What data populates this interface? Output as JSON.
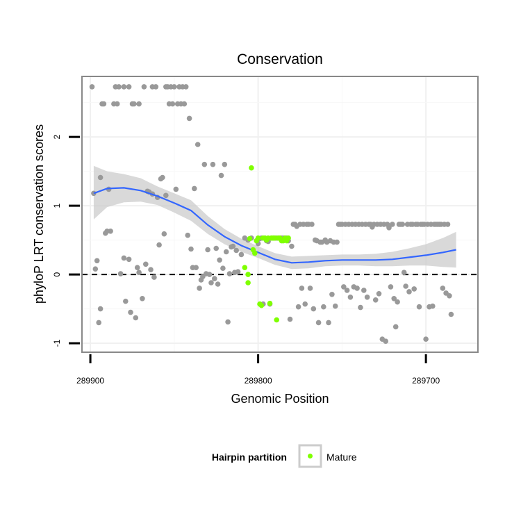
{
  "chart_data": {
    "type": "scatter",
    "title": "Conservation",
    "xlabel": "Genomic Position",
    "ylabel": "phyloP LRT conservation scores",
    "x_reversed": true,
    "xlim": [
      289905,
      289669
    ],
    "ylim": [
      -1.13,
      2.88
    ],
    "x_ticks": [
      289900,
      289800,
      289700
    ],
    "x_tick_labels": [
      "289900",
      "289800",
      "289700"
    ],
    "y_ticks": [
      -1,
      0,
      1,
      2
    ],
    "y_tick_labels": [
      "-1",
      "0",
      "1",
      "2"
    ],
    "grid": true,
    "reference_line": {
      "y": 0,
      "style": "dashed"
    },
    "legend": {
      "title": "Hairpin partition",
      "position": "bottom",
      "entries": [
        {
          "label": "Mature",
          "color": "#7fff00"
        }
      ]
    },
    "colors": {
      "other": "#999999",
      "mature": "#7fff00",
      "smooth": "#3366ff",
      "band": "#cccccc"
    },
    "series": [
      {
        "name": "Other",
        "points": [
          [
            289899,
            2.73
          ],
          [
            289898,
            1.18
          ],
          [
            289897,
            0.08
          ],
          [
            289896,
            0.2
          ],
          [
            289895,
            -0.7
          ],
          [
            289894,
            -0.5
          ],
          [
            289894,
            1.41
          ],
          [
            289893,
            2.48
          ],
          [
            289892,
            2.48
          ],
          [
            289891,
            0.6
          ],
          [
            289890,
            0.63
          ],
          [
            289889,
            1.24
          ],
          [
            289888,
            0.63
          ],
          [
            289886,
            2.48
          ],
          [
            289885,
            2.73
          ],
          [
            289884,
            2.48
          ],
          [
            289883,
            2.73
          ],
          [
            289882,
            0.01
          ],
          [
            289880,
            2.73
          ],
          [
            289880,
            0.24
          ],
          [
            289879,
            -0.39
          ],
          [
            289877,
            2.73
          ],
          [
            289877,
            0.22
          ],
          [
            289876,
            -0.55
          ],
          [
            289875,
            2.48
          ],
          [
            289874,
            2.48
          ],
          [
            289873,
            -0.63
          ],
          [
            289872,
            0.1
          ],
          [
            289871,
            0.03
          ],
          [
            289871,
            2.48
          ],
          [
            289869,
            -0.35
          ],
          [
            289868,
            2.73
          ],
          [
            289867,
            0.15
          ],
          [
            289866,
            1.21
          ],
          [
            289865,
            1.2
          ],
          [
            289864,
            0.07
          ],
          [
            289863,
            1.17
          ],
          [
            289863,
            2.73
          ],
          [
            289862,
            -0.04
          ],
          [
            289861,
            2.73
          ],
          [
            289860,
            1.12
          ],
          [
            289859,
            0.43
          ],
          [
            289858,
            1.39
          ],
          [
            289857,
            1.41
          ],
          [
            289856,
            0.59
          ],
          [
            289855,
            2.73
          ],
          [
            289855,
            1.15
          ],
          [
            289854,
            2.73
          ],
          [
            289853,
            2.48
          ],
          [
            289852,
            2.73
          ],
          [
            289851,
            2.48
          ],
          [
            289850,
            2.73
          ],
          [
            289849,
            1.24
          ],
          [
            289848,
            2.48
          ],
          [
            289847,
            2.73
          ],
          [
            289846,
            2.48
          ],
          [
            289845,
            2.73
          ],
          [
            289844,
            2.48
          ],
          [
            289843,
            2.73
          ],
          [
            289842,
            0.57
          ],
          [
            289841,
            2.27
          ],
          [
            289840,
            0.37
          ],
          [
            289839,
            0.1
          ],
          [
            289838,
            1.25
          ],
          [
            289837,
            0.1
          ],
          [
            289836,
            1.89
          ],
          [
            289835,
            -0.2
          ],
          [
            289834,
            -0.08
          ],
          [
            289833,
            -0.03
          ],
          [
            289832,
            1.6
          ],
          [
            289831,
            0.01
          ],
          [
            289830,
            0.36
          ],
          [
            289829,
            0.0
          ],
          [
            289828,
            -0.12
          ],
          [
            289827,
            1.6
          ],
          [
            289826,
            -0.06
          ],
          [
            289825,
            0.38
          ],
          [
            289824,
            -0.14
          ],
          [
            289823,
            0.21
          ],
          [
            289822,
            1.44
          ],
          [
            289821,
            0.09
          ],
          [
            289820,
            1.6
          ],
          [
            289819,
            0.33
          ],
          [
            289818,
            -0.69
          ],
          [
            289817,
            0.01
          ],
          [
            289816,
            0.4
          ],
          [
            289815,
            0.41
          ],
          [
            289814,
            0.03
          ],
          [
            289813,
            0.35
          ],
          [
            289812,
            0.04
          ],
          [
            289810,
            0.29
          ],
          [
            289808,
            0.53
          ],
          [
            289806,
            0.5
          ],
          [
            289804,
            0.53
          ],
          [
            289800,
            0.45
          ],
          [
            289799,
            0.52
          ],
          [
            289798,
            0.53
          ],
          [
            289797,
            -0.43
          ],
          [
            289796,
            0.53
          ],
          [
            289795,
            0.49
          ],
          [
            289794,
            0.48
          ],
          [
            289793,
            -0.43
          ],
          [
            289792,
            0.53
          ],
          [
            289791,
            0.53
          ],
          [
            289790,
            0.53
          ],
          [
            289789,
            0.53
          ],
          [
            289788,
            0.53
          ],
          [
            289787,
            0.53
          ],
          [
            289786,
            0.53
          ],
          [
            289785,
            0.53
          ],
          [
            289784,
            0.53
          ],
          [
            289783,
            0.53
          ],
          [
            289782,
            0.49
          ],
          [
            289781,
            -0.65
          ],
          [
            289780,
            0.41
          ],
          [
            289779,
            0.73
          ],
          [
            289778,
            0.73
          ],
          [
            289777,
            0.7
          ],
          [
            289776,
            -0.47
          ],
          [
            289775,
            0.73
          ],
          [
            289774,
            -0.2
          ],
          [
            289773,
            0.73
          ],
          [
            289772,
            -0.43
          ],
          [
            289771,
            0.73
          ],
          [
            289770,
            0.73
          ],
          [
            289769,
            -0.2
          ],
          [
            289768,
            0.73
          ],
          [
            289767,
            -0.5
          ],
          [
            289766,
            0.5
          ],
          [
            289765,
            0.49
          ],
          [
            289764,
            -0.7
          ],
          [
            289763,
            0.47
          ],
          [
            289762,
            0.47
          ],
          [
            289761,
            -0.47
          ],
          [
            289760,
            0.5
          ],
          [
            289759,
            0.47
          ],
          [
            289758,
            -0.7
          ],
          [
            289757,
            0.49
          ],
          [
            289756,
            -0.29
          ],
          [
            289755,
            0.47
          ],
          [
            289754,
            -0.46
          ],
          [
            289753,
            0.47
          ],
          [
            289752,
            0.73
          ],
          [
            289751,
            0.73
          ],
          [
            289750,
            0.73
          ],
          [
            289749,
            -0.18
          ],
          [
            289748,
            0.73
          ],
          [
            289747,
            -0.23
          ],
          [
            289746,
            0.73
          ],
          [
            289745,
            -0.33
          ],
          [
            289744,
            0.73
          ],
          [
            289743,
            -0.18
          ],
          [
            289742,
            0.73
          ],
          [
            289741,
            -0.2
          ],
          [
            289740,
            0.73
          ],
          [
            289739,
            -0.48
          ],
          [
            289738,
            0.73
          ],
          [
            289737,
            -0.23
          ],
          [
            289736,
            0.73
          ],
          [
            289735,
            -0.33
          ],
          [
            289734,
            0.73
          ],
          [
            289733,
            0.73
          ],
          [
            289732,
            0.69
          ],
          [
            289731,
            0.73
          ],
          [
            289730,
            -0.37
          ],
          [
            289729,
            0.73
          ],
          [
            289728,
            -0.28
          ],
          [
            289727,
            0.73
          ],
          [
            289726,
            -0.94
          ],
          [
            289725,
            0.73
          ],
          [
            289724,
            -0.97
          ],
          [
            289723,
            0.73
          ],
          [
            289722,
            0.68
          ],
          [
            289721,
            -0.18
          ],
          [
            289720,
            0.73
          ],
          [
            289719,
            -0.35
          ],
          [
            289718,
            -0.76
          ],
          [
            289717,
            -0.4
          ],
          [
            289716,
            0.73
          ],
          [
            289715,
            0.73
          ],
          [
            289714,
            0.73
          ],
          [
            289713,
            0.03
          ],
          [
            289712,
            -0.17
          ],
          [
            289711,
            0.73
          ],
          [
            289710,
            -0.25
          ],
          [
            289709,
            0.73
          ],
          [
            289708,
            0.73
          ],
          [
            289707,
            -0.21
          ],
          [
            289706,
            0.73
          ],
          [
            289705,
            0.73
          ],
          [
            289704,
            -0.47
          ],
          [
            289703,
            0.73
          ],
          [
            289702,
            0.73
          ],
          [
            289701,
            0.73
          ],
          [
            289700,
            -0.94
          ],
          [
            289699,
            0.73
          ],
          [
            289698,
            -0.47
          ],
          [
            289697,
            0.73
          ],
          [
            289696,
            -0.46
          ],
          [
            289695,
            0.73
          ],
          [
            289694,
            0.73
          ],
          [
            289693,
            0.73
          ],
          [
            289692,
            0.73
          ],
          [
            289691,
            0.73
          ],
          [
            289690,
            -0.2
          ],
          [
            289689,
            0.73
          ],
          [
            289688,
            -0.27
          ],
          [
            289687,
            0.73
          ],
          [
            289686,
            -0.31
          ],
          [
            289685,
            -0.58
          ]
        ]
      },
      {
        "name": "Mature",
        "points": [
          [
            289808,
            0.1
          ],
          [
            289806,
            0.0
          ],
          [
            289805,
            0.52
          ],
          [
            289804,
            1.55
          ],
          [
            289803,
            0.36
          ],
          [
            289802,
            0.31
          ],
          [
            289801,
            0.49
          ],
          [
            289800,
            0.53
          ],
          [
            289799,
            -0.43
          ],
          [
            289798,
            -0.45
          ],
          [
            289797,
            0.53
          ],
          [
            289796,
            0.53
          ],
          [
            289795,
            0.5
          ],
          [
            289794,
            0.53
          ],
          [
            289793,
            -0.42
          ],
          [
            289792,
            0.53
          ],
          [
            289791,
            0.53
          ],
          [
            289790,
            0.53
          ],
          [
            289789,
            -0.66
          ],
          [
            289788,
            0.53
          ],
          [
            289787,
            0.53
          ],
          [
            289786,
            0.49
          ],
          [
            289785,
            0.49
          ],
          [
            289784,
            0.53
          ],
          [
            289783,
            0.49
          ],
          [
            289782,
            0.53
          ],
          [
            289806,
            -0.12
          ]
        ]
      }
    ],
    "smooth": {
      "x": [
        289898,
        289890,
        289880,
        289870,
        289860,
        289850,
        289840,
        289830,
        289820,
        289810,
        289800,
        289790,
        289780,
        289770,
        289760,
        289750,
        289740,
        289730,
        289720,
        289710,
        289700,
        289690,
        289682
      ],
      "y": [
        1.18,
        1.25,
        1.26,
        1.22,
        1.14,
        1.04,
        0.93,
        0.72,
        0.55,
        0.42,
        0.32,
        0.22,
        0.17,
        0.18,
        0.2,
        0.21,
        0.21,
        0.21,
        0.22,
        0.25,
        0.28,
        0.32,
        0.36
      ],
      "se_lower": [
        0.8,
        0.98,
        1.05,
        1.06,
        1.01,
        0.9,
        0.78,
        0.59,
        0.44,
        0.33,
        0.24,
        0.14,
        0.08,
        0.09,
        0.12,
        0.13,
        0.13,
        0.12,
        0.12,
        0.13,
        0.13,
        0.11,
        0.1
      ],
      "se_upper": [
        1.58,
        1.5,
        1.46,
        1.4,
        1.28,
        1.18,
        1.08,
        0.85,
        0.66,
        0.52,
        0.41,
        0.31,
        0.26,
        0.27,
        0.28,
        0.29,
        0.29,
        0.3,
        0.33,
        0.38,
        0.44,
        0.53,
        0.62
      ]
    }
  }
}
